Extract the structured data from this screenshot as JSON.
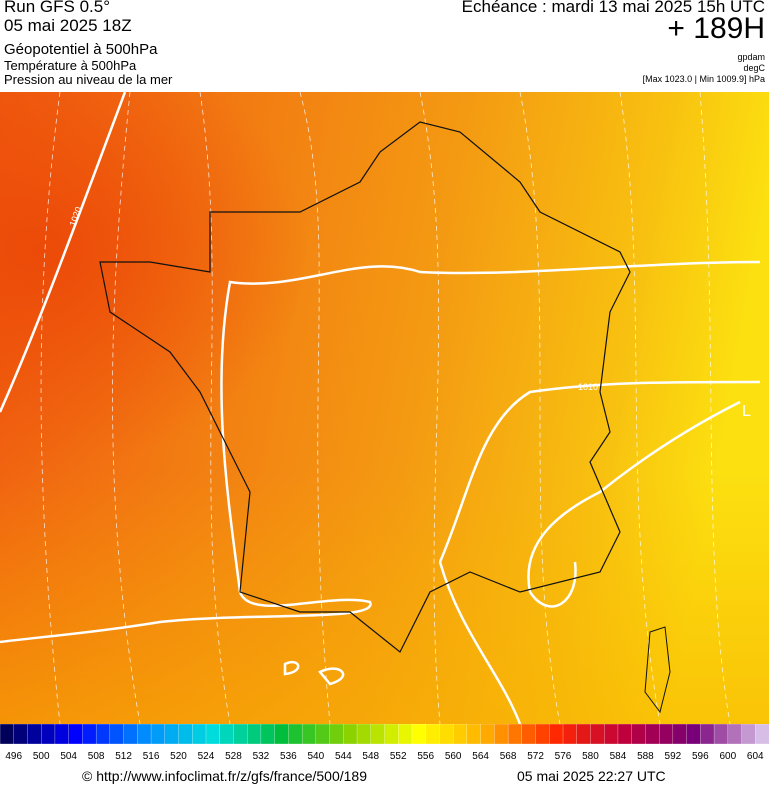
{
  "header": {
    "run": "Run GFS 0.5°",
    "date": "05 mai 2025 18Z",
    "fields": [
      "Géopotentiel à 500hPa",
      "Température à 500hPa",
      "Pression au niveau de la mer"
    ],
    "echeance": "Echéance : mardi 13 mai 2025 15h UTC",
    "lead": "+ 189H",
    "units": [
      "gpdam",
      "degC",
      "[Max 1023.0 | Min 1009.9] hPa"
    ]
  },
  "map": {
    "contour_labels": [
      "1020",
      "1010",
      "L"
    ]
  },
  "legend": {
    "labels": [
      496,
      500,
      504,
      508,
      512,
      516,
      520,
      524,
      528,
      532,
      536,
      540,
      544,
      548,
      552,
      556,
      560,
      564,
      568,
      572,
      576,
      580,
      584,
      588,
      592,
      596,
      600,
      604
    ]
  },
  "footer": {
    "url": "© http://www.infoclimat.fr/z/gfs/france/500/189",
    "generated": "05 mai 2025 22:27 UTC"
  }
}
